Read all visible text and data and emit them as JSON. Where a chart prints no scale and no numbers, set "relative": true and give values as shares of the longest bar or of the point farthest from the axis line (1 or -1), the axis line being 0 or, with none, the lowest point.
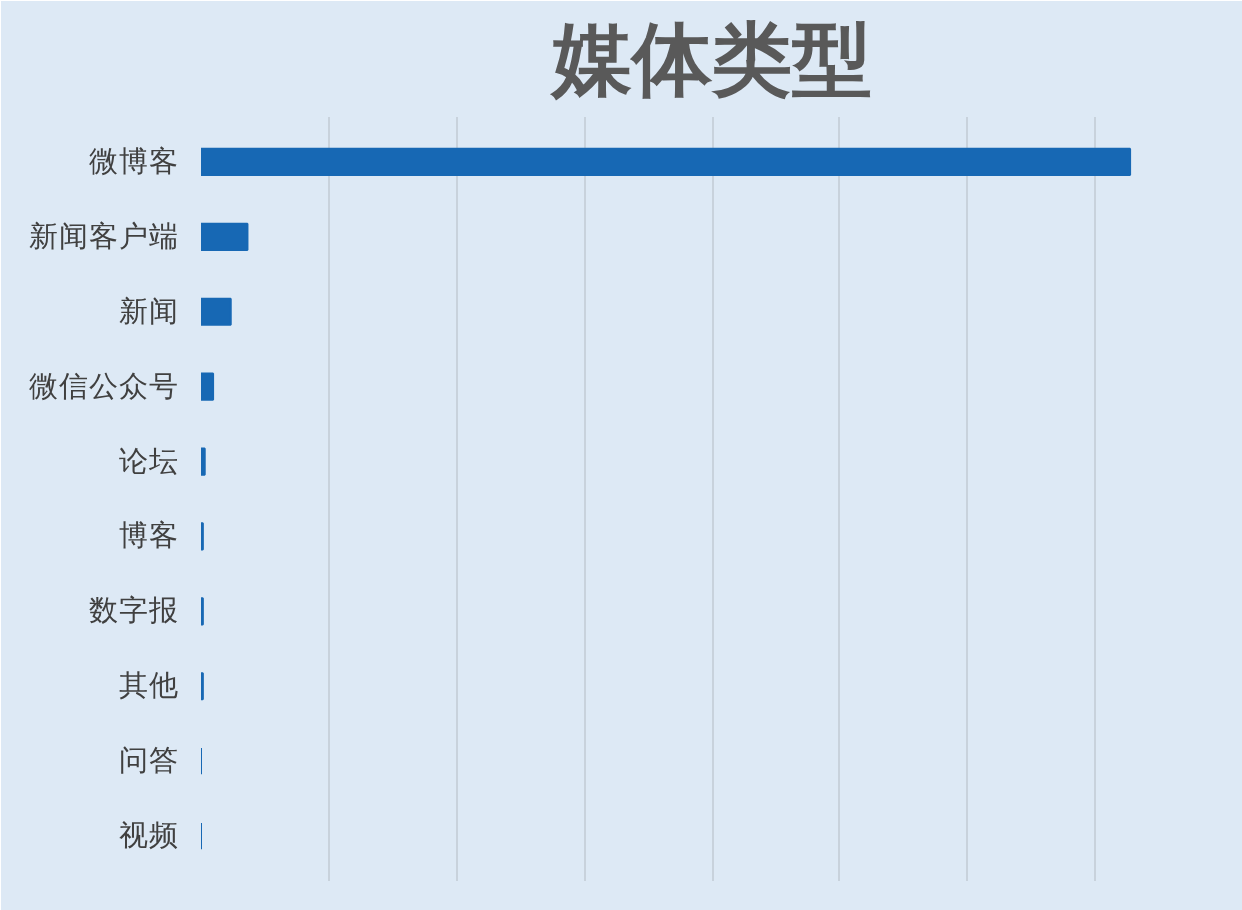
{
  "chart_data": {
    "type": "bar",
    "title": "媒体类型",
    "orientation": "horizontal",
    "relative": true,
    "categories": [
      "微博客",
      "新闻客户端",
      "新闻",
      "微信公众号",
      "论坛",
      "博客",
      "数字报",
      "其他",
      "问答",
      "视频"
    ],
    "values": [
      1,
      0.05,
      0.032,
      0.013,
      0.004,
      0.002,
      0.002,
      0.002,
      0,
      0
    ],
    "color": "#1768b4",
    "grid": "x"
  }
}
